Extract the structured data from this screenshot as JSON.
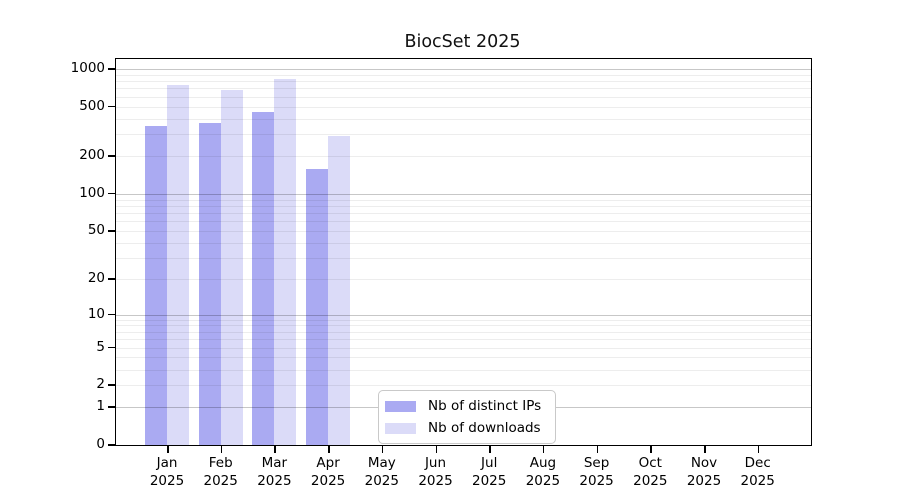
{
  "chart_data": {
    "type": "bar",
    "title": "BiocSet 2025",
    "categories": [
      "Jan",
      "Feb",
      "Mar",
      "Apr",
      "May",
      "Jun",
      "Jul",
      "Aug",
      "Sep",
      "Oct",
      "Nov",
      "Dec"
    ],
    "x_label_line2": "2025",
    "series": [
      {
        "name": "Nb of distinct IPs",
        "color": "#aaaaf2",
        "values": [
          352,
          370,
          453,
          160,
          null,
          null,
          null,
          null,
          null,
          null,
          null,
          null
        ]
      },
      {
        "name": "Nb of downloads",
        "color": "#dbdbf8",
        "values": [
          748,
          675,
          830,
          290,
          null,
          null,
          null,
          null,
          null,
          null,
          null,
          null
        ]
      }
    ],
    "y_ticks": [
      0,
      1,
      2,
      5,
      10,
      20,
      50,
      100,
      200,
      500,
      1000
    ],
    "y_major_grid": [
      1,
      10,
      100,
      1000
    ],
    "y_minor_grid": [
      2,
      3,
      4,
      5,
      6,
      7,
      8,
      9,
      20,
      30,
      40,
      50,
      60,
      70,
      80,
      90,
      200,
      300,
      400,
      500,
      600,
      700,
      800,
      900
    ],
    "scale": "log1p",
    "ylim": [
      0,
      1000
    ],
    "grid": true,
    "legend_position": "bottom-center-inside",
    "legend_entries": [
      "Nb of distinct IPs",
      "Nb of downloads"
    ]
  }
}
